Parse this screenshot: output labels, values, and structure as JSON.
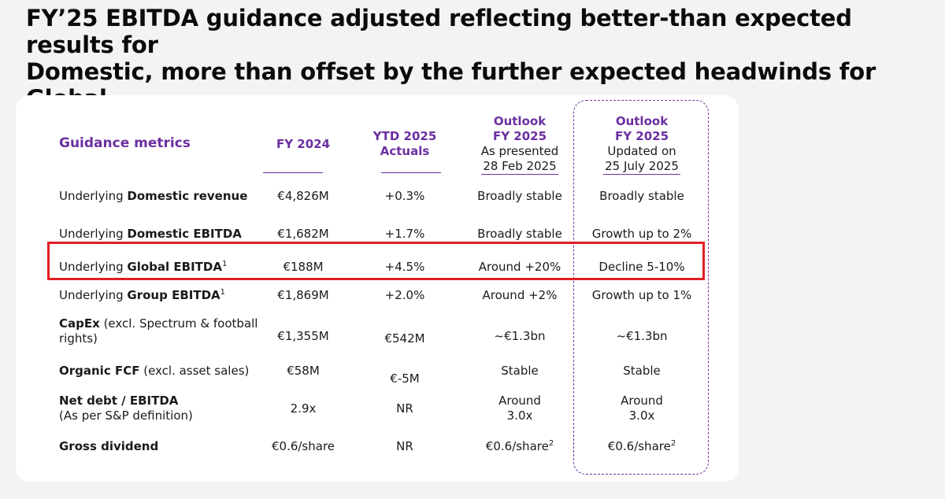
{
  "title_line1": "FY’25 EBITDA guidance adjusted reflecting better-than expected results for",
  "title_line2": "Domestic, more than offset by the further expected headwinds for Global",
  "headers": {
    "metrics": "Guidance metrics",
    "fy2024": "FY 2024",
    "ytd_l1": "YTD 2025",
    "ytd_l2": "Actuals",
    "outlook_l1": "Outlook",
    "outlook_l2": "FY 2025",
    "outlook_l3": "As presented",
    "outlook_l4": "28 Feb 2025",
    "updated_l1": "Outlook",
    "updated_l2": "FY 2025",
    "updated_l3": "Updated on",
    "updated_l4": "25 July 2025"
  },
  "rows": [
    {
      "prefix": "Underlying ",
      "bold": "Domestic revenue",
      "sup": "",
      "suffix": "",
      "fy2024": "€4,826M",
      "ytd": "+0.3%",
      "outlook": "Broadly stable",
      "updated": "Broadly stable"
    },
    {
      "prefix": "Underlying ",
      "bold": "Domestic EBITDA",
      "sup": "",
      "suffix": "",
      "fy2024": "€1,682M",
      "ytd": "+1.7%",
      "outlook": "Broadly stable",
      "updated": "Growth up to 2%"
    },
    {
      "prefix": "Underlying ",
      "bold": "Global EBITDA",
      "sup": "1",
      "suffix": "",
      "fy2024": "€188M",
      "ytd": "+4.5%",
      "outlook": "Around +20%",
      "updated": "Decline 5-10%"
    },
    {
      "prefix": "Underlying ",
      "bold": "Group EBITDA",
      "sup": "1",
      "suffix": "",
      "fy2024": "€1,869M",
      "ytd": "+2.0%",
      "outlook": "Around +2%",
      "updated": "Growth up to 1%"
    },
    {
      "prefix": "",
      "bold": "CapEx",
      "sup": "",
      "suffix": " (excl. Spectrum & football",
      "suffix2": "rights)",
      "fy2024": "€1,355M",
      "ytd": "€542M",
      "outlook": "~€1.3bn",
      "updated": "~€1.3bn"
    },
    {
      "prefix": "",
      "bold": "Organic FCF",
      "sup": "",
      "suffix": " (excl. asset sales)",
      "fy2024": "€58M",
      "ytd": "€-5M",
      "outlook": "Stable",
      "updated": "Stable"
    },
    {
      "prefix": "",
      "bold": "Net debt / EBITDA",
      "sup": "",
      "suffix": "",
      "suffix2": "(As per S&P definition)",
      "fy2024": "2.9x",
      "ytd": "NR",
      "outlook_l1": "Around",
      "outlook_l2": "3.0x",
      "updated_l1": "Around",
      "updated_l2": "3.0x"
    },
    {
      "prefix": "",
      "bold": "Gross dividend",
      "sup": "",
      "suffix": "",
      "fy2024": "€0.6/share",
      "ytd": "NR",
      "outlook": "€0.6/share",
      "outlook_sup": "2",
      "updated": "€0.6/share",
      "updated_sup": "2"
    }
  ],
  "colors": {
    "accent": "#6b2fa0",
    "highlight": "#e11e22"
  }
}
